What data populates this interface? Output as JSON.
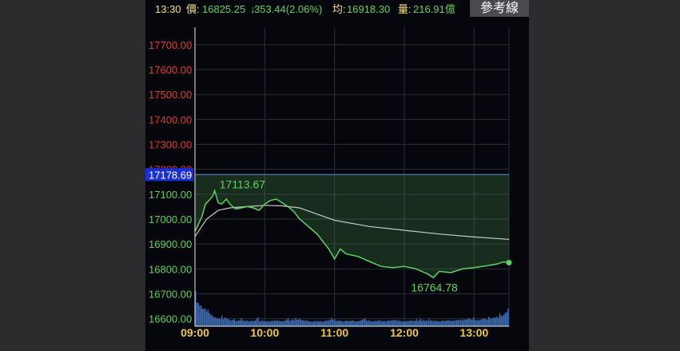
{
  "header": {
    "time": "13:30",
    "price_label": "價:",
    "price": "16825.25",
    "change_arrow": "↓",
    "change": "353.44(2.06%)",
    "avg_label": "均:",
    "avg": "16918.30",
    "volume_label": "量:",
    "volume": "216.91億",
    "ref_button": "參考線"
  },
  "colors": {
    "price_line": "#5ed45e",
    "avg_line": "#c8c8c8",
    "y_tick_above": "#e03b2e",
    "y_tick_below": "#5ed45e",
    "ref_badge": "#1a2fd8",
    "volume_bar": "#3d6eb4",
    "header_time": "#f2e27a",
    "header_text": "#5ed45e"
  },
  "chart_data": {
    "type": "line",
    "x_range": [
      "09:00",
      "13:30"
    ],
    "ylim": [
      16570,
      17770
    ],
    "y_ticks": [
      "17700.00",
      "17600.00",
      "17500.00",
      "17400.00",
      "17300.00",
      "17200.00",
      "17100.00",
      "17000.00",
      "16900.00",
      "16800.00",
      "16700.00",
      "16600.00"
    ],
    "x_ticks": [
      "09:00",
      "10:00",
      "11:00",
      "12:00",
      "13:00"
    ],
    "reference_value": "17178.69",
    "grid": true,
    "annotations": [
      {
        "text": "17113.67",
        "time": "09:17",
        "value": 17113.67
      },
      {
        "text": "16764.78",
        "time": "12:25",
        "value": 16764.78
      }
    ],
    "series": [
      {
        "type": "line",
        "x": [
          "09:00",
          "09:03",
          "09:06",
          "09:09",
          "09:12",
          "09:15",
          "09:17",
          "09:20",
          "09:23",
          "09:27",
          "09:30",
          "09:35",
          "09:40",
          "09:45",
          "09:50",
          "09:55",
          "10:00",
          "10:05",
          "10:10",
          "10:15",
          "10:20",
          "10:25",
          "10:30",
          "10:35",
          "10:40",
          "10:45",
          "10:50",
          "10:55",
          "11:00",
          "11:05",
          "11:10",
          "11:20",
          "11:30",
          "11:40",
          "11:50",
          "12:00",
          "12:10",
          "12:20",
          "12:25",
          "12:30",
          "12:40",
          "12:50",
          "13:00",
          "13:10",
          "13:20",
          "13:25",
          "13:30"
        ],
        "values": [
          16950,
          16980,
          17010,
          17060,
          17075,
          17090,
          17113.67,
          17065,
          17060,
          17080,
          17060,
          17040,
          17045,
          17050,
          17045,
          17035,
          17060,
          17075,
          17080,
          17065,
          17050,
          17030,
          17000,
          16980,
          16960,
          16940,
          16910,
          16880,
          16840,
          16880,
          16860,
          16850,
          16830,
          16810,
          16805,
          16810,
          16800,
          16780,
          16764.78,
          16790,
          16785,
          16800,
          16805,
          16812,
          16820,
          16828,
          16825.25
        ]
      },
      {
        "type": "line",
        "x": [
          "09:00",
          "09:05",
          "09:10",
          "09:20",
          "09:30",
          "09:45",
          "10:00",
          "10:15",
          "10:30",
          "10:45",
          "11:00",
          "11:30",
          "12:00",
          "12:30",
          "13:00",
          "13:30"
        ],
        "values": [
          16930,
          16965,
          17000,
          17035,
          17045,
          17050,
          17055,
          17053,
          17045,
          17020,
          16995,
          16970,
          16955,
          16940,
          16928,
          16918.3
        ]
      }
    ],
    "volume_values": [
      60,
      40,
      40,
      35,
      35,
      30,
      30,
      30,
      25,
      28,
      22,
      20,
      18,
      15,
      15,
      14,
      13,
      14,
      12,
      18,
      12,
      15,
      14,
      12,
      12,
      10,
      10,
      11,
      12,
      9,
      9,
      10,
      10,
      14,
      10,
      9,
      9,
      10,
      9,
      8,
      10,
      9,
      9,
      10,
      12,
      15,
      9,
      8,
      10,
      9,
      9,
      8,
      9,
      8,
      9,
      9,
      9,
      10,
      9,
      10,
      9,
      9,
      8,
      9,
      9,
      10,
      12,
      13,
      9,
      10,
      12,
      10,
      14,
      11,
      11,
      13,
      11,
      10,
      10,
      9,
      10,
      9,
      8,
      8,
      8,
      8,
      9,
      8,
      9,
      8,
      9,
      8,
      8,
      9,
      10,
      9,
      10,
      11,
      14,
      11,
      12,
      9,
      9,
      10,
      9,
      9,
      8,
      8,
      10,
      9,
      9,
      9,
      9,
      10,
      9,
      8,
      8,
      9,
      9,
      10,
      11,
      12,
      13,
      10,
      9,
      10,
      9,
      8,
      8,
      9,
      9,
      9,
      10,
      10,
      8,
      9,
      9,
      8,
      9,
      10,
      9,
      10,
      10,
      11,
      10,
      10,
      10,
      9,
      9,
      8,
      9,
      8,
      9,
      9,
      9,
      10,
      9,
      9,
      9,
      12,
      9,
      10,
      13,
      9,
      11,
      9,
      10,
      9,
      12,
      9,
      10,
      9,
      9,
      9,
      9,
      8,
      8,
      9,
      10,
      9,
      9,
      10,
      10,
      10,
      9,
      9,
      10,
      10,
      11,
      10,
      11,
      10,
      12,
      10,
      12,
      11,
      14,
      12,
      12,
      11,
      15,
      10,
      11,
      10,
      10,
      11,
      12,
      12,
      13,
      12,
      11,
      16,
      13,
      13,
      14,
      15,
      14,
      17,
      14,
      22,
      18,
      18,
      20,
      23,
      24,
      30
    ]
  }
}
